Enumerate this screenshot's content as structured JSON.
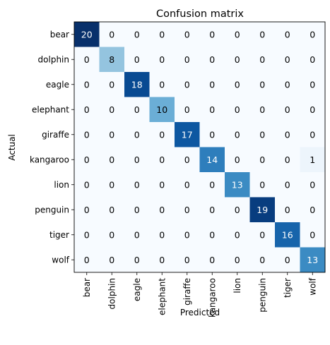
{
  "chart_data": {
    "type": "heatmap",
    "title": "Confusion matrix",
    "xlabel": "Predicted",
    "ylabel": "Actual",
    "x_categories": [
      "bear",
      "dolphin",
      "eagle",
      "elephant",
      "giraffe",
      "kangaroo",
      "lion",
      "penguin",
      "tiger",
      "wolf"
    ],
    "y_categories": [
      "bear",
      "dolphin",
      "eagle",
      "elephant",
      "giraffe",
      "kangaroo",
      "lion",
      "penguin",
      "tiger",
      "wolf"
    ],
    "values": [
      [
        20,
        0,
        0,
        0,
        0,
        0,
        0,
        0,
        0,
        0
      ],
      [
        0,
        8,
        0,
        0,
        0,
        0,
        0,
        0,
        0,
        0
      ],
      [
        0,
        0,
        18,
        0,
        0,
        0,
        0,
        0,
        0,
        0
      ],
      [
        0,
        0,
        0,
        10,
        0,
        0,
        0,
        0,
        0,
        0
      ],
      [
        0,
        0,
        0,
        0,
        17,
        0,
        0,
        0,
        0,
        0
      ],
      [
        0,
        0,
        0,
        0,
        0,
        14,
        0,
        0,
        0,
        1
      ],
      [
        0,
        0,
        0,
        0,
        0,
        0,
        13,
        0,
        0,
        0
      ],
      [
        0,
        0,
        0,
        0,
        0,
        0,
        0,
        19,
        0,
        0
      ],
      [
        0,
        0,
        0,
        0,
        0,
        0,
        0,
        0,
        16,
        0
      ],
      [
        0,
        0,
        0,
        0,
        0,
        0,
        0,
        0,
        0,
        13
      ]
    ],
    "colormap": "Blues",
    "value_range": [
      0,
      20
    ]
  }
}
